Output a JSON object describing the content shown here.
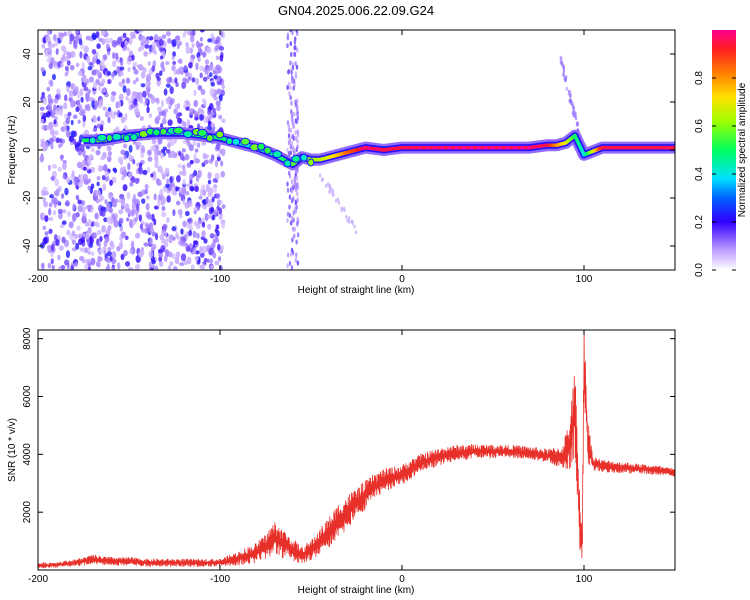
{
  "title": "GN04.2025.006.22.09.G24",
  "chart_data": [
    {
      "type": "heatmap",
      "title": "GN04.2025.006.22.09.G24",
      "xlabel": "Height of straight line (km)",
      "ylabel": "Frequency (Hz)",
      "xlim": [
        -200,
        150
      ],
      "ylim": [
        -50,
        50
      ],
      "xticks": [
        -200,
        -100,
        0,
        100
      ],
      "yticks": [
        -40,
        -20,
        0,
        20,
        40
      ],
      "colorbar": {
        "label": "Normalized spectral amplitude",
        "range": [
          0,
          1
        ],
        "ticks": [
          0.0,
          0.2,
          0.4,
          0.6,
          0.8
        ]
      },
      "ridge": {
        "x": [
          -175,
          -165,
          -150,
          -135,
          -120,
          -110,
          -100,
          -90,
          -80,
          -70,
          -60,
          -55,
          -50,
          -45,
          -40,
          -35,
          -30,
          -25,
          -20,
          -10,
          0,
          10,
          30,
          50,
          70,
          80,
          85,
          90,
          95,
          100,
          110,
          130,
          150
        ],
        "y": [
          4,
          4,
          6,
          7,
          7,
          6,
          5,
          3,
          1,
          -2,
          -6,
          -3,
          -4,
          -4,
          -3,
          -2,
          -1,
          0,
          1,
          0,
          1,
          1,
          1,
          1,
          1,
          2,
          2,
          3,
          6,
          -2,
          1,
          1,
          1
        ],
        "amplitude": [
          0.5,
          0.55,
          0.5,
          0.45,
          0.45,
          0.5,
          0.5,
          0.45,
          0.4,
          0.45,
          0.55,
          0.6,
          0.6,
          0.65,
          0.7,
          0.75,
          0.85,
          0.9,
          1.0,
          0.95,
          0.95,
          0.98,
          1.0,
          1.0,
          1.0,
          0.95,
          0.8,
          0.7,
          0.5,
          0.4,
          0.95,
          0.95,
          0.95
        ]
      }
    },
    {
      "type": "line",
      "xlabel": "Height of straight line (km)",
      "ylabel": "SNR (10 * v/v)",
      "xlim": [
        -200,
        150
      ],
      "ylim": [
        0,
        8300
      ],
      "xticks": [
        -200,
        -100,
        0,
        100
      ],
      "yticks": [
        2000,
        4000,
        6000,
        8000
      ],
      "series": [
        {
          "color": "#e8302a",
          "x": [
            -200,
            -190,
            -180,
            -170,
            -160,
            -150,
            -140,
            -130,
            -120,
            -110,
            -100,
            -90,
            -85,
            -80,
            -75,
            -70,
            -65,
            -60,
            -55,
            -50,
            -45,
            -40,
            -35,
            -30,
            -25,
            -20,
            -15,
            -10,
            -5,
            0,
            5,
            10,
            15,
            20,
            25,
            30,
            40,
            50,
            60,
            70,
            80,
            88,
            92,
            95,
            97,
            99,
            100,
            102,
            105,
            110,
            120,
            130,
            140,
            150
          ],
          "y": [
            150,
            180,
            250,
            350,
            300,
            300,
            250,
            250,
            250,
            250,
            250,
            400,
            500,
            600,
            800,
            1100,
            900,
            700,
            500,
            700,
            1000,
            1300,
            1700,
            2000,
            2300,
            2600,
            2900,
            3100,
            3200,
            3300,
            3500,
            3700,
            3800,
            3900,
            4000,
            4050,
            4100,
            4100,
            4100,
            4050,
            3950,
            3900,
            4300,
            5500,
            2500,
            500,
            7500,
            4500,
            3700,
            3600,
            3550,
            3500,
            3450,
            3350
          ],
          "noise": [
            100,
            100,
            120,
            180,
            150,
            150,
            140,
            140,
            140,
            140,
            140,
            250,
            300,
            350,
            450,
            600,
            500,
            400,
            300,
            350,
            450,
            550,
            600,
            600,
            550,
            500,
            450,
            400,
            380,
            350,
            340,
            320,
            320,
            300,
            300,
            280,
            260,
            240,
            230,
            230,
            240,
            400,
            900,
            1500,
            1500,
            900,
            1500,
            800,
            250,
            220,
            200,
            180,
            170,
            160
          ]
        }
      ]
    }
  ]
}
